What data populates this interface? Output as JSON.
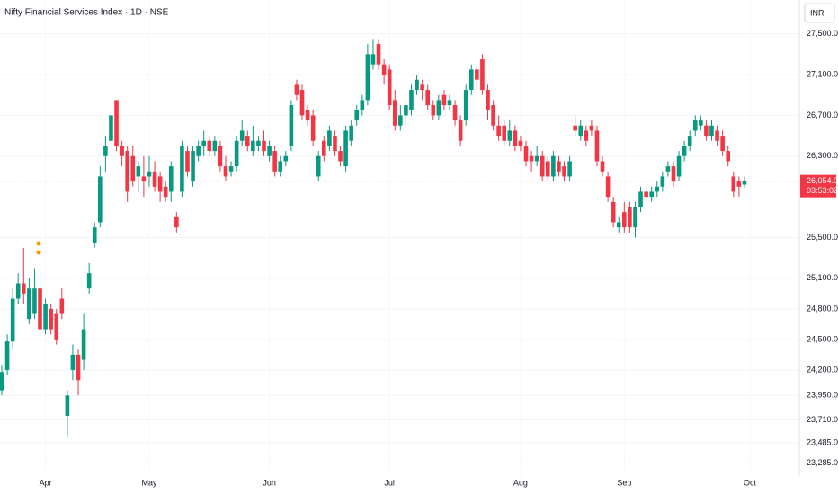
{
  "chart_data": {
    "type": "candlestick",
    "title": "Nifty Financial Services Index · 1D · NSE",
    "currency": "INR",
    "up_color": "#089981",
    "down_color": "#f23645",
    "open": [
      24000,
      24200,
      24480,
      24900,
      25050,
      24700,
      24750,
      25000,
      24600,
      24800,
      24750,
      24900,
      23750,
      24200,
      24350,
      24300,
      25000,
      25450,
      25650,
      26300,
      26450,
      26850,
      26400,
      26350,
      26300,
      26100,
      26100,
      26100,
      26150,
      26100,
      26000,
      25950,
      25700,
      25950,
      26350,
      26050,
      26300,
      26400,
      26450,
      26350,
      26400,
      26200,
      26150,
      26200,
      26450,
      26500,
      26350,
      26400,
      26450,
      26300,
      26350,
      26150,
      26250,
      26400,
      27000,
      26950,
      26750,
      26700,
      26100,
      26450,
      26400,
      26500,
      26350,
      26200,
      26450,
      26650,
      26750,
      26850,
      27200,
      27400,
      27200,
      27150,
      26850,
      26600,
      26700,
      26750,
      26950,
      27000,
      26950,
      26800,
      26700,
      26900,
      26800,
      26800,
      26650,
      26650,
      26950,
      27150,
      27250,
      26950,
      26800,
      26600,
      26600,
      26450,
      26550,
      26450,
      26400,
      26300,
      26250,
      26300,
      26250,
      26100,
      26250,
      26200,
      26100,
      26600,
      26500,
      26550,
      26600,
      26550,
      26250,
      26100,
      25850,
      25600,
      25750,
      25800,
      25600,
      25800,
      25950,
      25900,
      25950,
      26000,
      26150,
      26200,
      26100,
      26300,
      26400,
      26550,
      26600,
      26600,
      26500,
      26550,
      26500,
      26350,
      26100,
      26050,
      26020
    ],
    "high": [
      24250,
      24550,
      25000,
      25150,
      25400,
      25100,
      25200,
      25050,
      24900,
      24850,
      24800,
      25000,
      24000,
      24450,
      24400,
      24750,
      25250,
      25650,
      26200,
      26500,
      26750,
      26850,
      26450,
      26400,
      26400,
      26250,
      26300,
      26300,
      26250,
      26150,
      26050,
      26250,
      25750,
      26450,
      26400,
      26400,
      26450,
      26550,
      26500,
      26500,
      26450,
      26300,
      26250,
      26500,
      26650,
      26550,
      26600,
      26500,
      26550,
      26450,
      26400,
      26300,
      26350,
      26850,
      27050,
      27000,
      26800,
      26750,
      26350,
      26500,
      26600,
      26550,
      26400,
      26600,
      26650,
      26800,
      26900,
      27400,
      27450,
      27450,
      27250,
      27200,
      26950,
      26800,
      26850,
      27000,
      27100,
      27050,
      27000,
      26850,
      26900,
      26950,
      26900,
      26850,
      26700,
      27000,
      27200,
      27200,
      27300,
      27000,
      26850,
      26700,
      26650,
      26650,
      26600,
      26500,
      26450,
      26350,
      26400,
      26350,
      26300,
      26350,
      26300,
      26250,
      26300,
      26700,
      26650,
      26600,
      26650,
      26600,
      26300,
      26150,
      25900,
      25700,
      25850,
      25850,
      25850,
      26000,
      26000,
      26000,
      26050,
      26150,
      26250,
      26250,
      26350,
      26450,
      26550,
      26700,
      26700,
      26650,
      26650,
      26600,
      26550,
      26400,
      26150,
      26100,
      26100
    ],
    "low": [
      23950,
      24150,
      24400,
      24850,
      24850,
      24650,
      24700,
      24550,
      24550,
      24550,
      24450,
      24700,
      23550,
      24100,
      23950,
      24200,
      24950,
      25400,
      25600,
      26150,
      26400,
      26350,
      26200,
      25850,
      26000,
      25950,
      25900,
      26000,
      25950,
      25850,
      25850,
      25850,
      25550,
      25900,
      26100,
      26000,
      26250,
      26300,
      26300,
      26300,
      26150,
      26050,
      26100,
      26150,
      26400,
      26350,
      26300,
      26350,
      26300,
      26250,
      26100,
      26100,
      26200,
      26350,
      26850,
      26650,
      26600,
      26400,
      26050,
      26250,
      26350,
      26300,
      26200,
      26150,
      26400,
      26600,
      26700,
      26800,
      27150,
      27150,
      27000,
      26750,
      26550,
      26550,
      26600,
      26700,
      26900,
      26850,
      26750,
      26650,
      26650,
      26750,
      26750,
      26600,
      26400,
      26600,
      26900,
      26950,
      26900,
      26650,
      26550,
      26450,
      26400,
      26400,
      26350,
      26350,
      26200,
      26150,
      26200,
      26050,
      26050,
      26050,
      26100,
      26050,
      26050,
      26500,
      26450,
      26400,
      26500,
      26200,
      26100,
      25850,
      25600,
      25550,
      25550,
      25550,
      25500,
      25750,
      25850,
      25850,
      25900,
      25950,
      26100,
      26000,
      26050,
      26250,
      26350,
      26500,
      26550,
      26450,
      26450,
      26400,
      26300,
      26200,
      25900,
      25900,
      25990
    ],
    "close": [
      24180,
      24480,
      24900,
      25050,
      24950,
      25000,
      25000,
      24600,
      24850,
      24600,
      24500,
      24750,
      23950,
      24350,
      24100,
      24600,
      25150,
      25600,
      26100,
      26400,
      26700,
      26400,
      26300,
      25950,
      26050,
      26200,
      26050,
      26150,
      26000,
      25950,
      25900,
      26200,
      25600,
      26400,
      26150,
      26350,
      26400,
      26450,
      26350,
      26450,
      26200,
      26100,
      26200,
      26450,
      26550,
      26400,
      26450,
      26450,
      26350,
      26400,
      26150,
      26250,
      26300,
      26800,
      26900,
      26700,
      26650,
      26450,
      26300,
      26300,
      26550,
      26350,
      26250,
      26550,
      26600,
      26750,
      26850,
      27300,
      27300,
      27200,
      27100,
      26800,
      26600,
      26700,
      26800,
      26950,
      27050,
      26950,
      26800,
      26700,
      26850,
      26800,
      26850,
      26650,
      26450,
      26950,
      27150,
      27050,
      26950,
      26750,
      26600,
      26500,
      26450,
      26550,
      26400,
      26400,
      26250,
      26250,
      26300,
      26100,
      26100,
      26300,
      26150,
      26100,
      26250,
      26550,
      26600,
      26450,
      26550,
      26250,
      26150,
      25900,
      25650,
      25650,
      25600,
      25600,
      25800,
      25950,
      25900,
      25950,
      26000,
      26100,
      26200,
      26050,
      26300,
      26400,
      26500,
      26650,
      26650,
      26500,
      26600,
      26450,
      26350,
      26250,
      25950,
      26000,
      26054
    ],
    "xlim": [
      0,
      137
    ],
    "xticks": [
      {
        "value": 8,
        "label": "Apr"
      },
      {
        "value": 27,
        "label": "May"
      },
      {
        "value": 49,
        "label": "Jun"
      },
      {
        "value": 71,
        "label": "Jul"
      },
      {
        "value": 95,
        "label": "Aug"
      },
      {
        "value": 114,
        "label": "Sep"
      },
      {
        "value": 137,
        "label": "Oct"
      }
    ],
    "ylim": [
      23150,
      27700
    ],
    "yticks": [
      {
        "value": 23285,
        "label": "23,285.00"
      },
      {
        "value": 23485,
        "label": "23,485.00"
      },
      {
        "value": 23710,
        "label": "23,710.00"
      },
      {
        "value": 23950,
        "label": "23,950.00"
      },
      {
        "value": 24200,
        "label": "24,200.00"
      },
      {
        "value": 24500,
        "label": "24,500.00"
      },
      {
        "value": 24800,
        "label": "24,800.00"
      },
      {
        "value": 25100,
        "label": "25,100.00"
      },
      {
        "value": 25500,
        "label": "25,500.00"
      },
      {
        "value": 26300,
        "label": "26,300.00"
      },
      {
        "value": 26700,
        "label": "26,700.00"
      },
      {
        "value": 27100,
        "label": "27,100.00"
      },
      {
        "value": 27500,
        "label": "27,500.00"
      }
    ],
    "last_price": {
      "value": 26054,
      "label": "26,054.00"
    },
    "countdown": "03:53:02",
    "grid": true
  }
}
